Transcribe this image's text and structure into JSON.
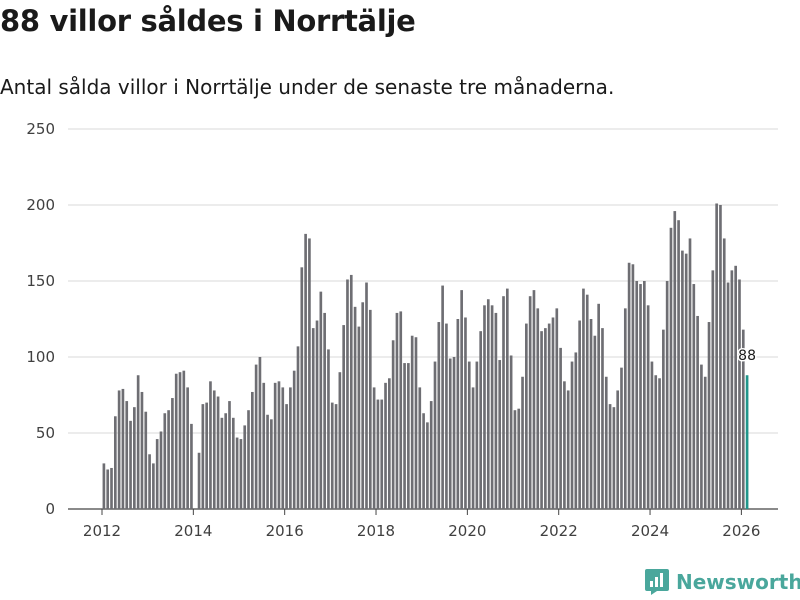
{
  "chart_data": {
    "type": "bar",
    "title": "88 villor såldes i Norrtälje",
    "subtitle": "Antal sålda villor i Norrtälje under de senaste tre månaderna.",
    "xlabel": "",
    "ylabel": "",
    "ylim": [
      0,
      250
    ],
    "yticks": [
      0,
      50,
      100,
      150,
      200,
      250
    ],
    "xticks": [
      2012,
      2014,
      2016,
      2018,
      2020,
      2022,
      2024,
      2026
    ],
    "start": "2012-01",
    "grid": true,
    "bar_color": "#6e6e73",
    "highlight_color": "#21968b",
    "highlight_label": "88",
    "values": [
      30,
      26,
      27,
      61,
      78,
      79,
      71,
      58,
      67,
      88,
      77,
      64,
      36,
      30,
      46,
      51,
      63,
      65,
      73,
      89,
      90,
      91,
      80,
      56,
      0,
      37,
      69,
      70,
      84,
      78,
      74,
      60,
      63,
      71,
      60,
      47,
      46,
      55,
      65,
      77,
      95,
      100,
      83,
      62,
      59,
      83,
      84,
      80,
      69,
      80,
      91,
      107,
      159,
      181,
      178,
      119,
      124,
      143,
      129,
      105,
      70,
      69,
      90,
      121,
      151,
      154,
      133,
      120,
      136,
      149,
      131,
      80,
      72,
      72,
      83,
      86,
      111,
      129,
      130,
      96,
      96,
      114,
      113,
      80,
      63,
      57,
      71,
      97,
      123,
      147,
      122,
      99,
      100,
      125,
      144,
      126,
      97,
      80,
      97,
      117,
      134,
      138,
      134,
      129,
      98,
      140,
      145,
      101,
      65,
      66,
      87,
      122,
      140,
      144,
      132,
      117,
      119,
      122,
      126,
      132,
      106,
      84,
      78,
      97,
      103,
      124,
      145,
      141,
      125,
      114,
      135,
      119,
      87,
      69,
      67,
      78,
      93,
      132,
      162,
      161,
      150,
      148,
      150,
      134,
      97,
      88,
      86,
      118,
      150,
      185,
      196,
      190,
      170,
      168,
      178,
      148,
      127,
      95,
      87,
      123,
      157,
      201,
      200,
      178,
      149,
      157,
      160,
      151,
      118,
      88
    ],
    "annotations": [
      {
        "label": "88",
        "series_index": "last"
      }
    ]
  },
  "brand": {
    "name": "Newsworthy"
  }
}
